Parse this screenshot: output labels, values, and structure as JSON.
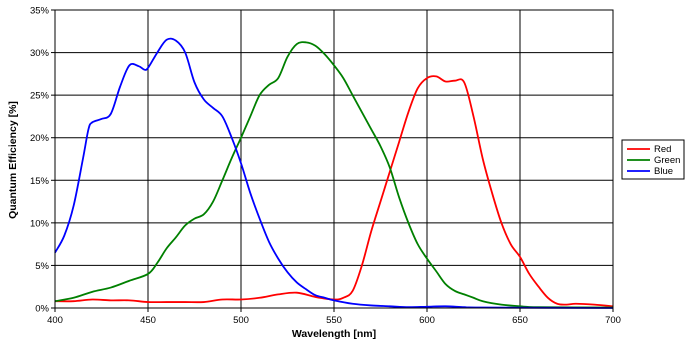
{
  "chart_data": {
    "type": "line",
    "xlabel": "Wavelength [nm]",
    "ylabel": "Quantum Efficiency [%]",
    "xlim": [
      400,
      700
    ],
    "ylim": [
      0,
      35
    ],
    "x_ticks": [
      "400",
      "450",
      "500",
      "550",
      "600",
      "650",
      "700"
    ],
    "y_ticks": [
      "0%",
      "5%",
      "10%",
      "15%",
      "20%",
      "25%",
      "30%",
      "35%"
    ],
    "grid": true,
    "legend_position": "right",
    "series": [
      {
        "name": "Red",
        "color": "#ff0000",
        "points": [
          [
            400,
            0.8
          ],
          [
            410,
            0.8
          ],
          [
            420,
            1.0
          ],
          [
            430,
            0.9
          ],
          [
            440,
            0.9
          ],
          [
            450,
            0.7
          ],
          [
            460,
            0.7
          ],
          [
            470,
            0.7
          ],
          [
            480,
            0.7
          ],
          [
            490,
            1.0
          ],
          [
            500,
            1.0
          ],
          [
            510,
            1.2
          ],
          [
            520,
            1.6
          ],
          [
            530,
            1.8
          ],
          [
            540,
            1.3
          ],
          [
            550,
            1.0
          ],
          [
            555,
            1.2
          ],
          [
            560,
            2.0
          ],
          [
            565,
            5.0
          ],
          [
            570,
            9.0
          ],
          [
            575,
            12.5
          ],
          [
            580,
            16.0
          ],
          [
            585,
            19.5
          ],
          [
            590,
            23.0
          ],
          [
            595,
            25.8
          ],
          [
            600,
            27.0
          ],
          [
            605,
            27.2
          ],
          [
            610,
            26.6
          ],
          [
            615,
            26.7
          ],
          [
            620,
            26.5
          ],
          [
            625,
            22.5
          ],
          [
            630,
            17.5
          ],
          [
            635,
            13.5
          ],
          [
            640,
            10.0
          ],
          [
            645,
            7.5
          ],
          [
            650,
            6.0
          ],
          [
            655,
            4.0
          ],
          [
            660,
            2.5
          ],
          [
            665,
            1.2
          ],
          [
            670,
            0.5
          ],
          [
            675,
            0.4
          ],
          [
            680,
            0.5
          ],
          [
            690,
            0.4
          ],
          [
            700,
            0.2
          ]
        ]
      },
      {
        "name": "Green",
        "color": "#008000",
        "points": [
          [
            400,
            0.8
          ],
          [
            410,
            1.2
          ],
          [
            420,
            1.9
          ],
          [
            430,
            2.4
          ],
          [
            440,
            3.2
          ],
          [
            450,
            4.0
          ],
          [
            455,
            5.3
          ],
          [
            460,
            7.0
          ],
          [
            465,
            8.3
          ],
          [
            470,
            9.7
          ],
          [
            475,
            10.5
          ],
          [
            480,
            11.0
          ],
          [
            485,
            12.5
          ],
          [
            490,
            15.0
          ],
          [
            495,
            17.6
          ],
          [
            500,
            20.0
          ],
          [
            505,
            22.5
          ],
          [
            510,
            25.0
          ],
          [
            515,
            26.2
          ],
          [
            520,
            27.0
          ],
          [
            525,
            29.5
          ],
          [
            530,
            31.0
          ],
          [
            535,
            31.2
          ],
          [
            540,
            30.8
          ],
          [
            545,
            29.8
          ],
          [
            550,
            28.5
          ],
          [
            555,
            27.0
          ],
          [
            560,
            25.0
          ],
          [
            565,
            23.0
          ],
          [
            570,
            21.0
          ],
          [
            575,
            19.0
          ],
          [
            580,
            16.5
          ],
          [
            585,
            13.0
          ],
          [
            590,
            10.0
          ],
          [
            595,
            7.5
          ],
          [
            600,
            5.8
          ],
          [
            605,
            4.3
          ],
          [
            610,
            2.8
          ],
          [
            615,
            2.0
          ],
          [
            620,
            1.6
          ],
          [
            625,
            1.2
          ],
          [
            630,
            0.8
          ],
          [
            640,
            0.4
          ],
          [
            650,
            0.2
          ],
          [
            660,
            0.1
          ],
          [
            700,
            0.05
          ]
        ]
      },
      {
        "name": "Blue",
        "color": "#0000ff",
        "points": [
          [
            400,
            6.5
          ],
          [
            405,
            8.5
          ],
          [
            410,
            12.0
          ],
          [
            415,
            17.5
          ],
          [
            418,
            21.0
          ],
          [
            420,
            21.8
          ],
          [
            425,
            22.2
          ],
          [
            430,
            22.8
          ],
          [
            435,
            26.0
          ],
          [
            440,
            28.5
          ],
          [
            445,
            28.4
          ],
          [
            448,
            28.0
          ],
          [
            450,
            28.2
          ],
          [
            455,
            30.0
          ],
          [
            460,
            31.5
          ],
          [
            465,
            31.4
          ],
          [
            470,
            30.0
          ],
          [
            475,
            26.5
          ],
          [
            480,
            24.5
          ],
          [
            485,
            23.5
          ],
          [
            490,
            22.5
          ],
          [
            495,
            20.0
          ],
          [
            500,
            17.0
          ],
          [
            505,
            13.5
          ],
          [
            510,
            10.5
          ],
          [
            515,
            7.8
          ],
          [
            520,
            5.8
          ],
          [
            525,
            4.2
          ],
          [
            530,
            3.0
          ],
          [
            535,
            2.2
          ],
          [
            540,
            1.5
          ],
          [
            545,
            1.2
          ],
          [
            550,
            0.9
          ],
          [
            560,
            0.5
          ],
          [
            570,
            0.3
          ],
          [
            580,
            0.2
          ],
          [
            590,
            0.1
          ],
          [
            600,
            0.15
          ],
          [
            610,
            0.2
          ],
          [
            620,
            0.1
          ],
          [
            630,
            0.05
          ],
          [
            700,
            0.0
          ]
        ]
      }
    ]
  }
}
